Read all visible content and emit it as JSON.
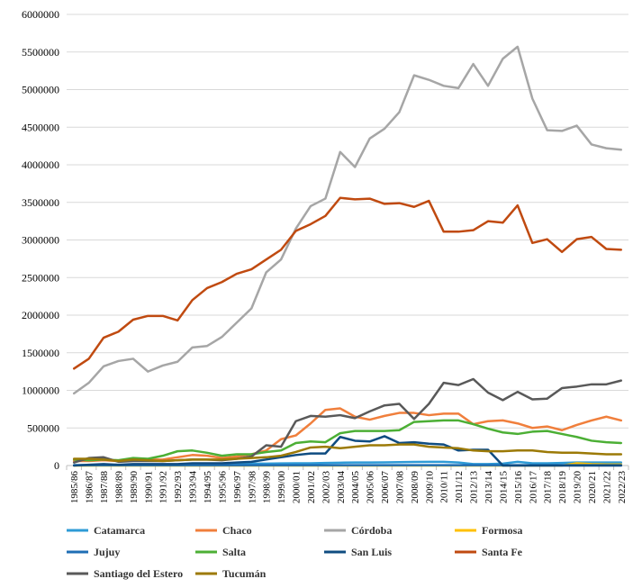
{
  "chart_data": {
    "type": "line",
    "title": "",
    "xlabel": "",
    "ylabel": "",
    "ylim": [
      0,
      6000000
    ],
    "yticks": [
      0,
      500000,
      1000000,
      1500000,
      2000000,
      2500000,
      3000000,
      3500000,
      4000000,
      4500000,
      5000000,
      5500000,
      6000000
    ],
    "ytick_labels": [
      "0",
      "500000",
      "1000000",
      "1500000",
      "2000000",
      "2500000",
      "3000000",
      "3500000",
      "4000000",
      "4500000",
      "5000000",
      "5500000",
      "6000000"
    ],
    "grid": true,
    "legend": "bottom",
    "categories": [
      "1985/86",
      "1986/87",
      "1987/88",
      "1988/89",
      "1989/90",
      "1990/91",
      "1991/92",
      "1992/93",
      "1993/94",
      "1994/95",
      "1995/96",
      "1996/97",
      "1997/98",
      "1998/99",
      "1999/00",
      "2000/01",
      "2001/02",
      "2002/03",
      "2003/04",
      "2004/05",
      "2005/06",
      "2006/07",
      "2007/08",
      "2008/09",
      "2009/10",
      "2010/11",
      "2011/12",
      "2012/13",
      "2013/14",
      "2014/15",
      "2015/16",
      "2016/17",
      "2017/18",
      "2018/19",
      "2019/20",
      "2020/21",
      "2021/22",
      "2022/23"
    ],
    "series": [
      {
        "name": "Catamarca",
        "color": "#2E9BD6",
        "values": [
          5000,
          8000,
          10000,
          8000,
          10000,
          10000,
          12000,
          15000,
          18000,
          20000,
          20000,
          22000,
          25000,
          25000,
          28000,
          30000,
          30000,
          35000,
          38000,
          40000,
          40000,
          42000,
          45000,
          48000,
          50000,
          50000,
          40000,
          20000,
          20000,
          25000,
          50000,
          30000,
          30000,
          35000,
          40000,
          40000,
          40000,
          40000
        ]
      },
      {
        "name": "Chaco",
        "color": "#F07F3C",
        "values": [
          60000,
          60000,
          70000,
          60000,
          70000,
          80000,
          80000,
          110000,
          140000,
          130000,
          100000,
          120000,
          150000,
          200000,
          350000,
          400000,
          560000,
          740000,
          760000,
          650000,
          610000,
          660000,
          700000,
          700000,
          670000,
          690000,
          690000,
          550000,
          590000,
          600000,
          560000,
          500000,
          520000,
          470000,
          540000,
          600000,
          650000,
          600000
        ]
      },
      {
        "name": "Córdoba",
        "color": "#A6A6A6",
        "values": [
          960000,
          1100000,
          1320000,
          1390000,
          1420000,
          1250000,
          1330000,
          1380000,
          1570000,
          1590000,
          1710000,
          1900000,
          2090000,
          2570000,
          2740000,
          3150000,
          3450000,
          3550000,
          4170000,
          3970000,
          4350000,
          4480000,
          4700000,
          5190000,
          5130000,
          5050000,
          5020000,
          5340000,
          5050000,
          5410000,
          5570000,
          4880000,
          4460000,
          4450000,
          4520000,
          4270000,
          4220000,
          4200000
        ]
      },
      {
        "name": "Formosa",
        "color": "#FFC000",
        "values": [
          0,
          0,
          0,
          0,
          0,
          0,
          0,
          0,
          0,
          0,
          0,
          0,
          0,
          0,
          0,
          0,
          0,
          0,
          0,
          0,
          0,
          0,
          0,
          0,
          0,
          0,
          0,
          0,
          0,
          0,
          0,
          0,
          0,
          0,
          30000,
          20000,
          15000,
          15000
        ]
      },
      {
        "name": "Jujuy",
        "color": "#1F6EB5",
        "values": [
          5000,
          5000,
          5000,
          5000,
          5000,
          5000,
          5000,
          5000,
          5000,
          5000,
          5000,
          5000,
          5000,
          5000,
          5000,
          5000,
          5000,
          5000,
          5000,
          5000,
          5000,
          5000,
          5000,
          5000,
          5000,
          5000,
          5000,
          5000,
          5000,
          5000,
          5000,
          5000,
          5000,
          5000,
          5000,
          5000,
          5000,
          5000
        ]
      },
      {
        "name": "Salta",
        "color": "#4CAF35",
        "values": [
          80000,
          70000,
          80000,
          70000,
          100000,
          90000,
          130000,
          190000,
          200000,
          170000,
          130000,
          150000,
          150000,
          180000,
          200000,
          300000,
          320000,
          310000,
          430000,
          460000,
          460000,
          460000,
          470000,
          580000,
          590000,
          600000,
          600000,
          550000,
          490000,
          440000,
          420000,
          450000,
          460000,
          420000,
          380000,
          330000,
          310000,
          300000
        ]
      },
      {
        "name": "San Luis",
        "color": "#0F4C81",
        "values": [
          0,
          10000,
          20000,
          10000,
          20000,
          20000,
          20000,
          20000,
          30000,
          30000,
          30000,
          40000,
          50000,
          80000,
          110000,
          140000,
          160000,
          160000,
          380000,
          330000,
          320000,
          390000,
          300000,
          310000,
          290000,
          280000,
          200000,
          210000,
          210000,
          0,
          0,
          0,
          0,
          0,
          0,
          0,
          0,
          0
        ]
      },
      {
        "name": "Santa Fe",
        "color": "#C04A10",
        "values": [
          1290000,
          1420000,
          1700000,
          1780000,
          1940000,
          1990000,
          1990000,
          1930000,
          2200000,
          2360000,
          2440000,
          2550000,
          2610000,
          2740000,
          2870000,
          3120000,
          3210000,
          3320000,
          3560000,
          3540000,
          3550000,
          3480000,
          3490000,
          3440000,
          3520000,
          3110000,
          3110000,
          3130000,
          3250000,
          3230000,
          3460000,
          2960000,
          3010000,
          2840000,
          3010000,
          3040000,
          2880000,
          2870000
        ]
      },
      {
        "name": "Santiago del Estero",
        "color": "#595959",
        "values": [
          40000,
          100000,
          110000,
          50000,
          60000,
          60000,
          60000,
          70000,
          80000,
          80000,
          70000,
          90000,
          120000,
          270000,
          250000,
          590000,
          660000,
          650000,
          670000,
          630000,
          720000,
          800000,
          820000,
          620000,
          820000,
          1100000,
          1070000,
          1150000,
          970000,
          870000,
          980000,
          880000,
          890000,
          1030000,
          1050000,
          1080000,
          1080000,
          1130000
        ]
      },
      {
        "name": "Tucumán",
        "color": "#9C7A07",
        "values": [
          90000,
          90000,
          80000,
          60000,
          80000,
          70000,
          60000,
          70000,
          80000,
          80000,
          80000,
          90000,
          100000,
          110000,
          130000,
          180000,
          240000,
          250000,
          230000,
          250000,
          270000,
          270000,
          280000,
          280000,
          250000,
          240000,
          230000,
          200000,
          190000,
          190000,
          200000,
          200000,
          180000,
          170000,
          170000,
          160000,
          150000,
          150000
        ]
      }
    ]
  }
}
